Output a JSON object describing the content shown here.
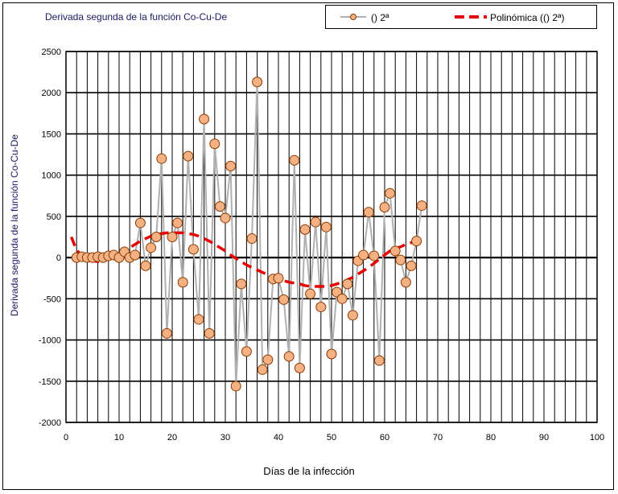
{
  "chart_data": {
    "type": "line",
    "title": "Derivada segunda de la función Co-Cu-De",
    "xlabel": "Días de la infección",
    "ylabel": "Derivada segunda de la función Co-Cu-De",
    "xlim": [
      0,
      100
    ],
    "ylim": [
      -2000,
      2500
    ],
    "xticks": [
      0,
      10,
      20,
      30,
      40,
      50,
      60,
      70,
      80,
      90,
      100
    ],
    "yticks": [
      2500,
      2000,
      1500,
      1000,
      500,
      0,
      -500,
      -1000,
      -1500,
      -2000
    ],
    "grid": true,
    "legend_position": "top-right",
    "series": [
      {
        "name": "() 2ª",
        "style": "line with circle markers",
        "line_color": "#b0b0b0",
        "marker_fill": "#f4b183",
        "marker_edge": "#8b3a00",
        "x": [
          2,
          3,
          4,
          5,
          6,
          7,
          8,
          9,
          10,
          11,
          12,
          13,
          14,
          15,
          16,
          17,
          18,
          19,
          20,
          21,
          22,
          23,
          24,
          25,
          26,
          27,
          28,
          29,
          30,
          31,
          32,
          33,
          34,
          35,
          36,
          37,
          38,
          39,
          40,
          41,
          42,
          43,
          44,
          45,
          46,
          47,
          48,
          49,
          50,
          51,
          52,
          53,
          54,
          55,
          56,
          57,
          58,
          59,
          60,
          61,
          62,
          63,
          64,
          65,
          66,
          67
        ],
        "y": [
          0,
          10,
          0,
          0,
          10,
          0,
          20,
          30,
          0,
          70,
          0,
          30,
          420,
          -100,
          120,
          250,
          1200,
          -920,
          250,
          420,
          -300,
          1230,
          100,
          -750,
          1680,
          -920,
          1380,
          620,
          480,
          1110,
          -1560,
          -320,
          -1140,
          230,
          2130,
          -1360,
          -1240,
          -260,
          -250,
          -510,
          -1200,
          1180,
          -1340,
          340,
          -440,
          430,
          -600,
          370,
          -1170,
          -420,
          -500,
          -320,
          -700,
          -40,
          30,
          550,
          20,
          -1250,
          610,
          780,
          80,
          -30,
          -300,
          -100,
          200,
          630
        ]
      },
      {
        "name": "Polinómica (() 2ª)",
        "style": "dashed trendline",
        "color": "#e60000",
        "x": [
          1,
          2,
          3,
          4,
          5,
          6,
          7,
          8,
          9,
          10,
          11,
          12,
          13,
          14,
          15,
          16,
          17,
          18,
          19,
          20,
          21,
          22,
          23,
          24,
          25,
          26,
          27,
          28,
          29,
          30,
          31,
          32,
          33,
          34,
          35,
          36,
          37,
          38,
          39,
          40,
          41,
          42,
          43,
          44,
          45,
          46,
          47,
          48,
          49,
          50,
          51,
          52,
          53,
          54,
          55,
          56,
          57,
          58,
          59,
          60,
          61,
          62,
          63,
          64,
          65,
          66,
          67
        ],
        "y": [
          250,
          90,
          20,
          -20,
          -40,
          -50,
          -40,
          -20,
          10,
          40,
          80,
          120,
          160,
          200,
          230,
          260,
          280,
          290,
          300,
          300,
          300,
          300,
          290,
          280,
          260,
          230,
          200,
          160,
          120,
          80,
          30,
          -10,
          -50,
          -90,
          -120,
          -150,
          -180,
          -210,
          -240,
          -260,
          -280,
          -300,
          -310,
          -320,
          -340,
          -350,
          -350,
          -350,
          -350,
          -340,
          -320,
          -300,
          -270,
          -240,
          -200,
          -160,
          -120,
          -70,
          -20,
          30,
          80,
          110,
          130,
          160,
          180,
          200,
          220
        ]
      }
    ]
  }
}
